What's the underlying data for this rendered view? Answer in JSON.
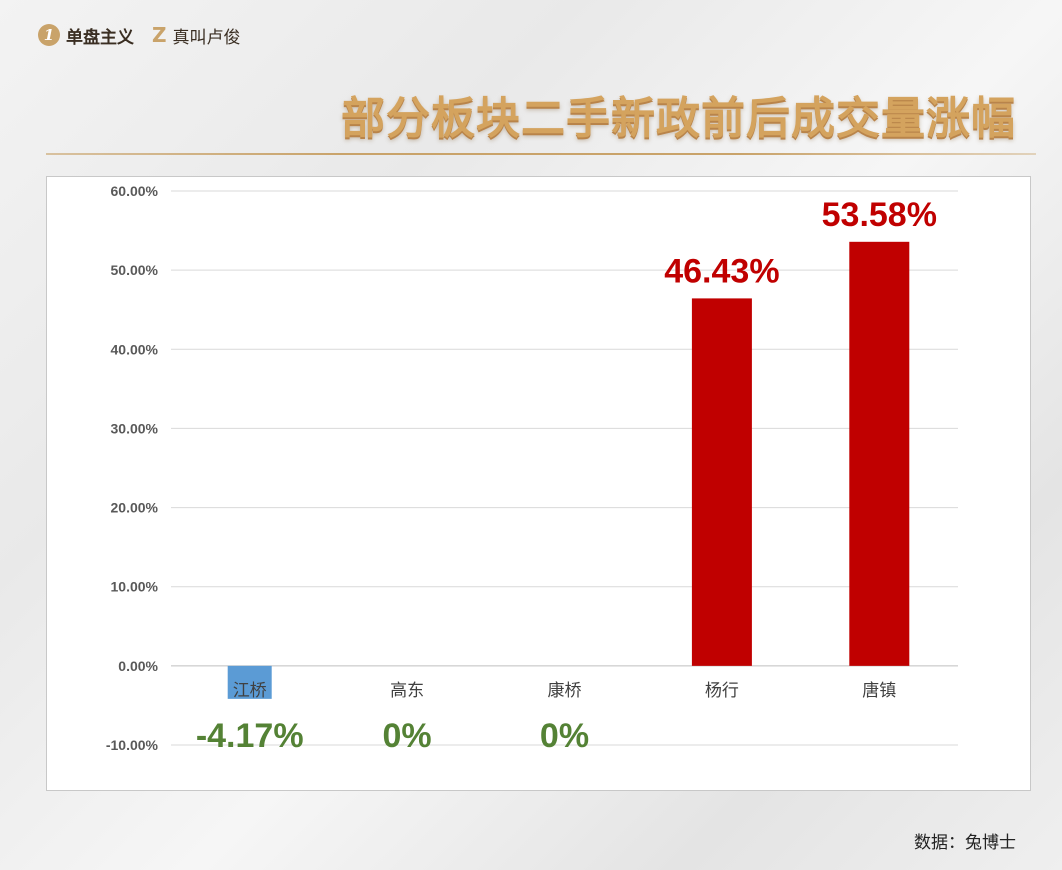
{
  "brand": {
    "logo1_glyph": "1",
    "name1": "单盘主义",
    "logo2_glyph": "Z",
    "name2": "真叫卢俊"
  },
  "title": "部分板块二手新政前后成交量涨幅",
  "source": "数据：兔博士",
  "colors": {
    "positive_bar": "#c00000",
    "negative_bar": "#5b9bd5",
    "positive_label": "#c00000",
    "nonpositive_label": "#548235",
    "gold": "#c9a36a"
  },
  "chart_data": {
    "type": "bar",
    "title": "",
    "xlabel": "",
    "ylabel": "",
    "categories": [
      "江桥",
      "高东",
      "康桥",
      "杨行",
      "唐镇"
    ],
    "values": [
      -4.17,
      0,
      0,
      46.43,
      53.58
    ],
    "data_labels": [
      "-4.17%",
      "0%",
      "0%",
      "46.43%",
      "53.58%"
    ],
    "y_ticks": [
      -10,
      0,
      10,
      20,
      30,
      40,
      50,
      60
    ],
    "y_tick_labels": [
      "-10.00%",
      "0.00%",
      "10.00%",
      "20.00%",
      "30.00%",
      "40.00%",
      "50.00%",
      "60.00%"
    ],
    "ylim": [
      -10,
      60
    ],
    "grid": true,
    "legend": "none"
  }
}
